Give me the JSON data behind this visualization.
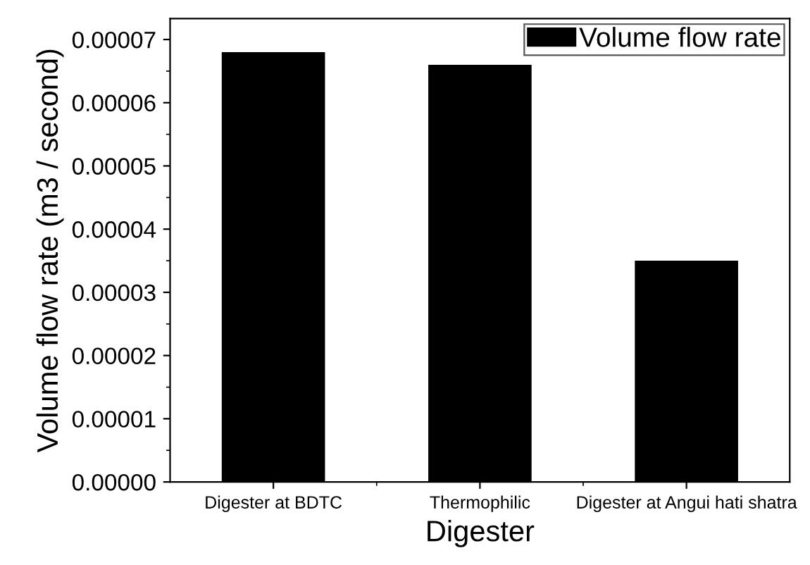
{
  "chart_data": {
    "type": "bar",
    "xlabel": "Digester",
    "ylabel": "Volume flow rate (m3 / second)",
    "categories": [
      "Digester at BDTC",
      "Thermophilic",
      "Digester at Angui hati shatra"
    ],
    "series": [
      {
        "name": "Volume flow rate",
        "color": "#000000",
        "values": [
          6.8e-05,
          6.6e-05,
          3.5e-05
        ]
      }
    ],
    "ylim": [
      0,
      7.33e-05
    ],
    "yticks": [
      {
        "value": 0,
        "label": "0.00000"
      },
      {
        "value": 1e-05,
        "label": "0.00001"
      },
      {
        "value": 2e-05,
        "label": "0.00002"
      },
      {
        "value": 3e-05,
        "label": "0.00003"
      },
      {
        "value": 4e-05,
        "label": "0.00004"
      },
      {
        "value": 5e-05,
        "label": "0.00005"
      },
      {
        "value": 6e-05,
        "label": "0.00006"
      },
      {
        "value": 7e-05,
        "label": "0.00007"
      }
    ],
    "legend": "top right",
    "grid": false
  }
}
